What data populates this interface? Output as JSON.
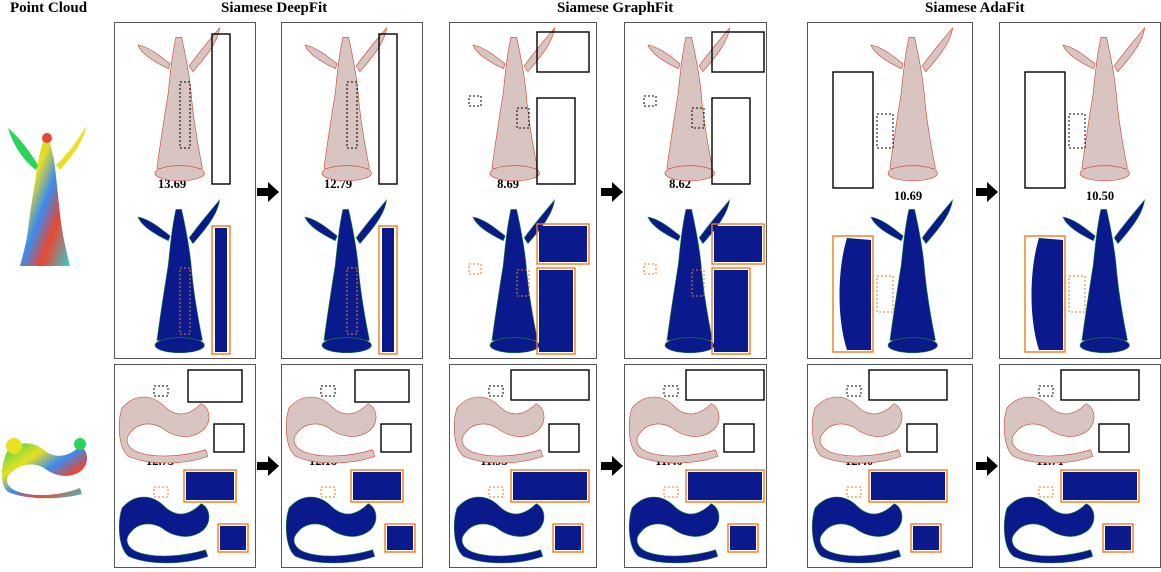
{
  "column_headers": {
    "point_cloud": "Point Cloud",
    "deepfit": "Siamese DeepFit",
    "graphfit": "Siamese GraphFit",
    "adafit": "Siamese AdaFit"
  },
  "angel_row": {
    "values": [
      "13.69",
      "12.79",
      "8.69",
      "8.62",
      "10.69",
      "10.50"
    ]
  },
  "dragon_row": {
    "values": [
      "12.75",
      "12.18",
      "11.95",
      "11.40",
      "12.40",
      "11.71"
    ]
  },
  "colors": {
    "inset_black": "#000000",
    "inset_orange": "#f07a1a",
    "error_bg": "#0a1a8c",
    "points_red": "#c8402e",
    "points_gray": "#d8c4c0"
  }
}
